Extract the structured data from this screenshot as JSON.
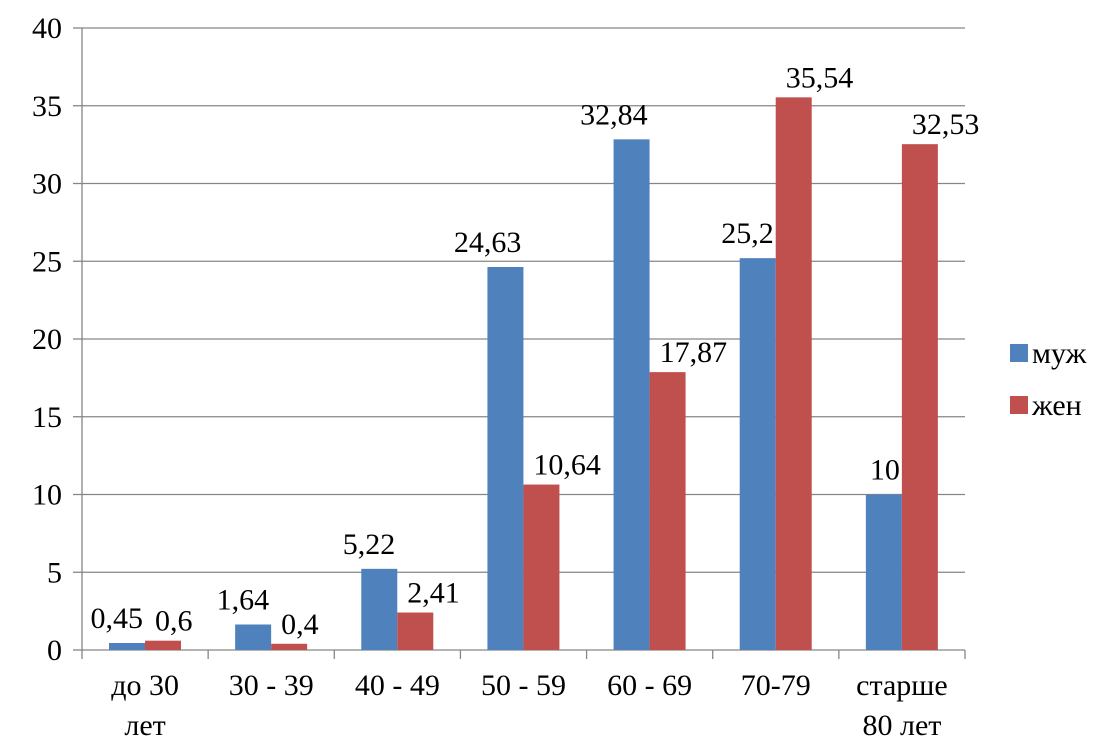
{
  "chart_data": {
    "type": "bar",
    "categories": [
      [
        "до 30",
        "лет"
      ],
      [
        "30 - 39"
      ],
      [
        "40 - 49"
      ],
      [
        "50 - 59"
      ],
      [
        "60 - 69"
      ],
      [
        "70-79"
      ],
      [
        "старше",
        "80 лет"
      ]
    ],
    "series": [
      {
        "name": "муж",
        "color": "#4f81bd",
        "values": [
          0.45,
          1.64,
          5.22,
          24.63,
          32.84,
          25.2,
          10
        ],
        "labels": [
          "0,45",
          "1,64",
          "5,22",
          "24,63",
          "32,84",
          "25,2",
          "10"
        ]
      },
      {
        "name": "жен",
        "color": "#c0504d",
        "values": [
          0.6,
          0.4,
          2.41,
          10.64,
          17.87,
          35.54,
          32.53
        ],
        "labels": [
          "0,6",
          "0,4",
          "2,41",
          "10,64",
          "17,87",
          "35,54",
          "32,53"
        ]
      }
    ],
    "ylim": [
      0,
      40
    ],
    "yticks": [
      0,
      5,
      10,
      15,
      20,
      25,
      30,
      35,
      40
    ],
    "grid": true,
    "legend_position": "right",
    "title": "",
    "xlabel": "",
    "ylabel": ""
  }
}
